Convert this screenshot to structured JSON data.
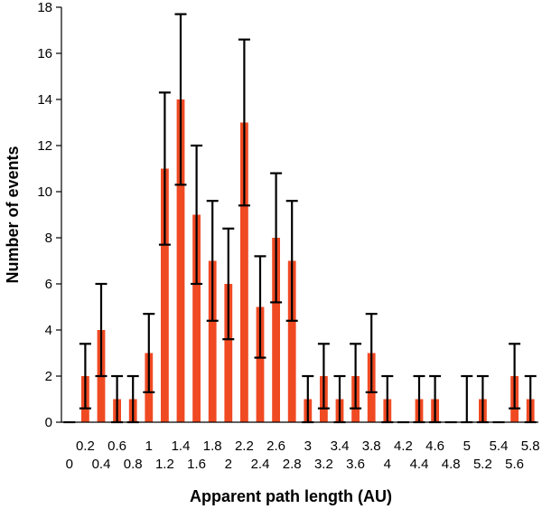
{
  "chart_data": {
    "type": "bar",
    "xlabel": "Apparent path length (AU)",
    "ylabel": "Number of events",
    "ylim": [
      0,
      18
    ],
    "yticks": [
      0,
      2,
      4,
      6,
      8,
      10,
      12,
      14,
      16,
      18
    ],
    "grid": false,
    "legend": "none",
    "bar_color": "#f04a23",
    "categories": [
      "0",
      "0.2",
      "0.4",
      "0.6",
      "0.8",
      "1",
      "1.2",
      "1.4",
      "1.6",
      "1.8",
      "2",
      "2.2",
      "2.4",
      "2.6",
      "2.8",
      "3",
      "3.2",
      "3.4",
      "3.6",
      "3.8",
      "4",
      "4.2",
      "4.4",
      "4.6",
      "4.8",
      "5",
      "5.2",
      "5.4",
      "5.6",
      "5.8"
    ],
    "values": [
      0,
      2,
      4,
      1,
      1,
      3,
      11,
      14,
      9,
      7,
      6,
      13,
      5,
      8,
      7,
      1,
      2,
      1,
      2,
      3,
      1,
      0,
      1,
      1,
      0,
      0,
      1,
      0,
      2,
      1
    ],
    "error_low": [
      0,
      0.6,
      2.0,
      0,
      0,
      1.3,
      7.7,
      10.3,
      6.0,
      4.4,
      3.6,
      9.4,
      2.8,
      5.2,
      4.4,
      0,
      0.6,
      0,
      0.6,
      1.3,
      0,
      0,
      0,
      0,
      0,
      0,
      0,
      0,
      0.6,
      0
    ],
    "error_high": [
      0,
      3.4,
      6.0,
      2.0,
      2.0,
      4.7,
      14.3,
      17.7,
      12.0,
      9.6,
      8.4,
      16.6,
      7.2,
      10.8,
      9.6,
      2.0,
      3.4,
      2.0,
      3.4,
      4.7,
      2.0,
      0,
      2.0,
      2.0,
      0,
      2.0,
      2.0,
      0,
      3.4,
      2.0
    ]
  }
}
